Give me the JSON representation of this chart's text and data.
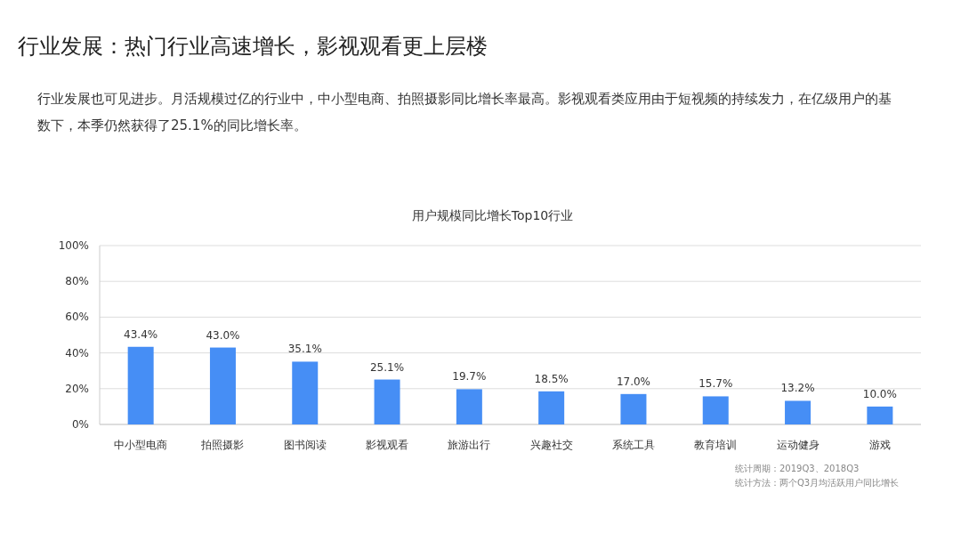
{
  "chart_data": {
    "type": "bar",
    "title": "行业发展：热门行业高速增长，影视观看更上层楼",
    "subtitle": "行业发展也可见进步。月活规模过亿的行业中，中小型电商、拍照摄影同比增长率最高。影视观看类应用由于短视频的持续发力，在亿级用户的基数下，本季仍然获得了25.1%的同比增长率。",
    "annotations": [
      "用户规模同比增长Top10行业",
      "统计周期：2019Q3、2018Q3",
      "统计方法：两个Q3月均活跃用户同比增长"
    ],
    "categories": [
      "中小型电商",
      "拍照摄影",
      "图书阅读",
      "影视观看",
      "旅游出行",
      "兴趣社交",
      "系统工具",
      "教育培训",
      "运动健身",
      "游戏"
    ],
    "values": [
      43.4,
      43.0,
      35.1,
      25.1,
      19.7,
      18.5,
      17.0,
      15.7,
      13.2,
      10.0
    ],
    "value_labels": [
      "43.4%",
      "43.0%",
      "35.1%",
      "25.1%",
      "19.7%",
      "18.5%",
      "17.0%",
      "15.7%",
      "13.2%",
      "10.0%"
    ],
    "color": "#468ef5",
    "ylim": [
      0,
      100
    ],
    "yticks": [
      {
        "value": 0,
        "label": "0%"
      },
      {
        "value": 20,
        "label": "20%"
      },
      {
        "value": 40,
        "label": "40%"
      },
      {
        "value": 60,
        "label": "60%"
      },
      {
        "value": 80,
        "label": "80%"
      },
      {
        "value": 100,
        "label": "100%"
      }
    ],
    "grid": "y"
  }
}
